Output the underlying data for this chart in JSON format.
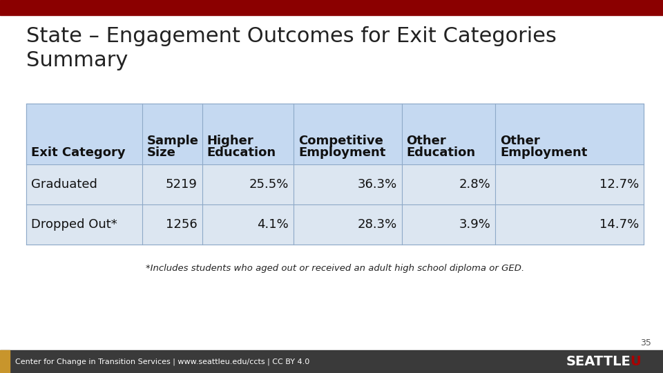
{
  "title": "State – Engagement Outcomes for Exit Categories\nSummary",
  "title_fontsize": 22,
  "title_color": "#222222",
  "background_color": "#ffffff",
  "top_bar_color": "#8B0000",
  "bottom_bar_color": "#3a3a3a",
  "footer_text": "Center for Change in Transition Services | www.seattleu.edu/ccts | CC BY 4.0",
  "footer_color": "#ffffff",
  "page_number": "35",
  "footnote": "*Includes students who aged out or received an adult high school diploma or GED.",
  "table_header_bg": "#c5d9f1",
  "table_row_bg": "#dce6f1",
  "table_border_color": "#8ea9c8",
  "col_headers": [
    [
      "Exit Category",
      ""
    ],
    [
      "Sample",
      "Size"
    ],
    [
      "Higher",
      "Education"
    ],
    [
      "Competitive",
      "Employment"
    ],
    [
      "Other",
      "Education"
    ],
    [
      "Other",
      "Employment"
    ]
  ],
  "rows": [
    [
      "Graduated",
      "5219",
      "25.5%",
      "36.3%",
      "2.8%",
      "12.7%"
    ],
    [
      "Dropped Out*",
      "1256",
      "4.1%",
      "28.3%",
      "3.9%",
      "14.7%"
    ]
  ],
  "col_aligns": [
    "left",
    "right",
    "left",
    "left",
    "left",
    "left"
  ],
  "data_fontsize": 13,
  "header_fontsize": 13,
  "seattle_u_white": "#ffffff",
  "seattle_u_red": "#aa0000",
  "gold_color": "#c8952c"
}
